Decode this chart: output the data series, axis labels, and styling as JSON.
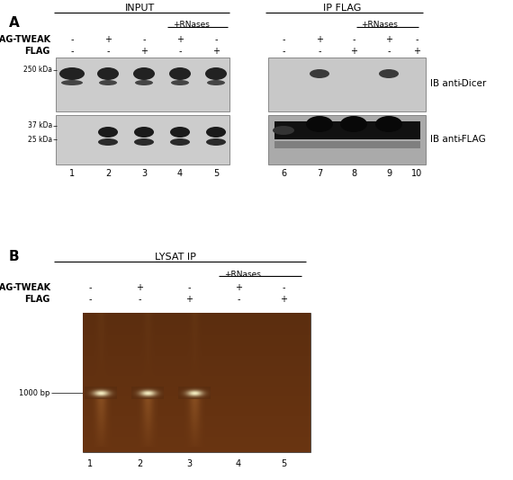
{
  "fig_width": 5.7,
  "fig_height": 5.34,
  "bg_color": "#ffffff",
  "panel_A": {
    "label": "A",
    "input_title": "INPUT",
    "ipflag_title": "IP FLAG",
    "rnases_label": "+RNases",
    "flagtweak_label": "FLAG-TWEAK",
    "flagtweak_vals_A": [
      "-",
      "+",
      "-",
      "+",
      "-",
      "-",
      "+",
      "-",
      "+",
      "-"
    ],
    "flag_label": "FLAG",
    "flag_vals_A": [
      "-",
      "-",
      "+",
      "-",
      "+",
      "-",
      "-",
      "+",
      "-",
      "+"
    ],
    "lane_nums_A": [
      "1",
      "2",
      "3",
      "4",
      "5",
      "6",
      "7",
      "8",
      "9",
      "10"
    ],
    "mw1_label": "250 kDa",
    "mw2_label": "37 kDa",
    "mw3_label": "25 kDa",
    "ib_dicer": "IB anti-Dicer",
    "ib_flag": "IB anti-FLAG"
  },
  "panel_B": {
    "label": "B",
    "lysatip_title": "LYSAT IP",
    "rnases_label": "+RNases",
    "flagtweak_label": "FLAG-TWEAK",
    "flagtweak_vals_B": [
      "-",
      "+",
      "-",
      "+",
      "-"
    ],
    "flag_label": "FLAG",
    "flag_vals_B": [
      "-",
      "-",
      "+",
      "-",
      "+"
    ],
    "lane_nums_B": [
      "1",
      "2",
      "3",
      "4",
      "5"
    ],
    "bp1000_label": "1000 bp"
  }
}
